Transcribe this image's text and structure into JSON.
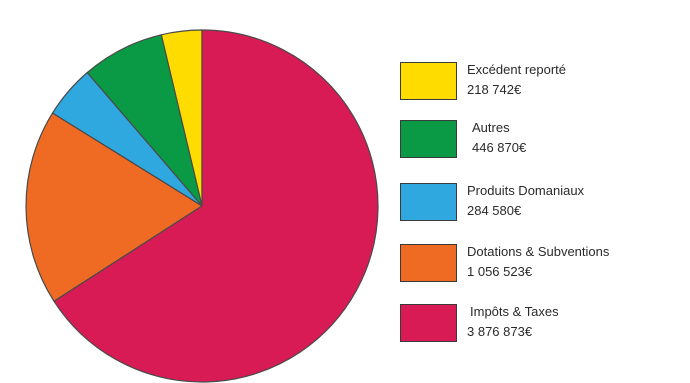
{
  "chart_data": {
    "type": "pie",
    "title": "",
    "legend_position": "right",
    "slices": [
      {
        "label": "Excédent reporté",
        "value_text": "218 742€",
        "value": 218742,
        "color": "#ffdc00"
      },
      {
        "label": "Autres",
        "value_text": "446 870€",
        "value": 446870,
        "color": "#0a9a46"
      },
      {
        "label": "Produits Domaniaux",
        "value_text": "284 580€",
        "value": 284580,
        "color": "#2ea8df"
      },
      {
        "label": "Dotations & Subventions",
        "value_text": "1 056 523€",
        "value": 1056523,
        "color": "#ef6a22"
      },
      {
        "label": "Impôts & Taxes",
        "value_text": "3 876 873€",
        "value": 3876873,
        "color": "#d81b55"
      }
    ]
  }
}
